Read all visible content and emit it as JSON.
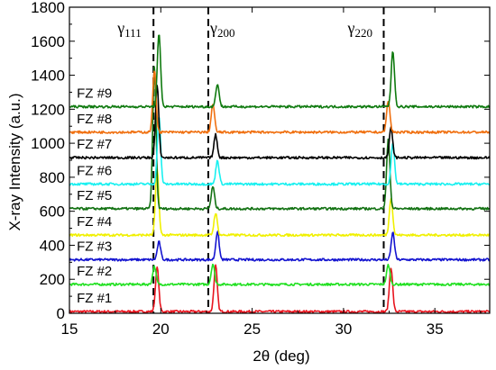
{
  "chart_data": {
    "type": "line",
    "title": "",
    "xlabel": "2θ (deg)",
    "ylabel": "X-ray Intensity (a.u.)",
    "xlim": [
      15,
      38
    ],
    "ylim": [
      0,
      1800
    ],
    "xticks": [
      15,
      20,
      25,
      30,
      35
    ],
    "yticks": [
      0,
      200,
      400,
      600,
      800,
      1000,
      1200,
      1400,
      1600,
      1800
    ],
    "grid": false,
    "legend": "none",
    "reference_lines": [
      {
        "label": "γ111",
        "base": "γ",
        "sub": "111",
        "x": 19.6
      },
      {
        "label": "γ200",
        "base": "γ",
        "sub": "200",
        "x": 22.6
      },
      {
        "label": "γ220",
        "base": "γ",
        "sub": "220",
        "x": 32.2
      }
    ],
    "peak_positions": [
      19.7,
      22.9,
      32.5
    ],
    "series": [
      {
        "name": "FZ #1",
        "color": "#e8141e",
        "baseline": 10,
        "peaks": [
          270,
          280,
          270
        ]
      },
      {
        "name": "FZ #2",
        "color": "#22e022",
        "baseline": 170,
        "peaks": [
          275,
          290,
          285
        ]
      },
      {
        "name": "FZ #3",
        "color": "#1414d0",
        "baseline": 315,
        "peaks": [
          420,
          480,
          475
        ]
      },
      {
        "name": "FZ #4",
        "color": "#f0f000",
        "baseline": 460,
        "peaks": [
          850,
          590,
          680
        ]
      },
      {
        "name": "FZ #5",
        "color": "#137213",
        "baseline": 615,
        "peaks": [
          1450,
          745,
          1020
        ]
      },
      {
        "name": "FZ #6",
        "color": "#18f0f0",
        "baseline": 760,
        "peaks": [
          1160,
          900,
          1000
        ]
      },
      {
        "name": "FZ #7",
        "color": "#000000",
        "baseline": 915,
        "peaks": [
          1335,
          1050,
          1090
        ]
      },
      {
        "name": "FZ #8",
        "color": "#f07010",
        "baseline": 1065,
        "peaks": [
          1430,
          1230,
          1250
        ]
      },
      {
        "name": "FZ #9",
        "color": "#0f7a0f",
        "baseline": 1215,
        "peaks": [
          1640,
          1350,
          1540
        ]
      }
    ]
  }
}
